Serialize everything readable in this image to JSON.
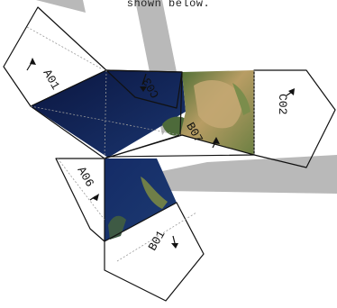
{
  "caption": "shown below.",
  "colors": {
    "shadow": "#b9b9b9",
    "ocean": "#0c1a4a",
    "ocean_light": "#1c3a7a",
    "land_green": "#5f7d3a",
    "land_desert": "#b59a63",
    "paper": "#ffffff"
  },
  "panels": {
    "a01": {
      "label": "A01"
    },
    "a06": {
      "label": "A06"
    },
    "b01": {
      "label": "B01"
    },
    "b07": {
      "label": "B07"
    },
    "c02": {
      "label": "C02"
    },
    "c03": {
      "label": "C03"
    }
  }
}
